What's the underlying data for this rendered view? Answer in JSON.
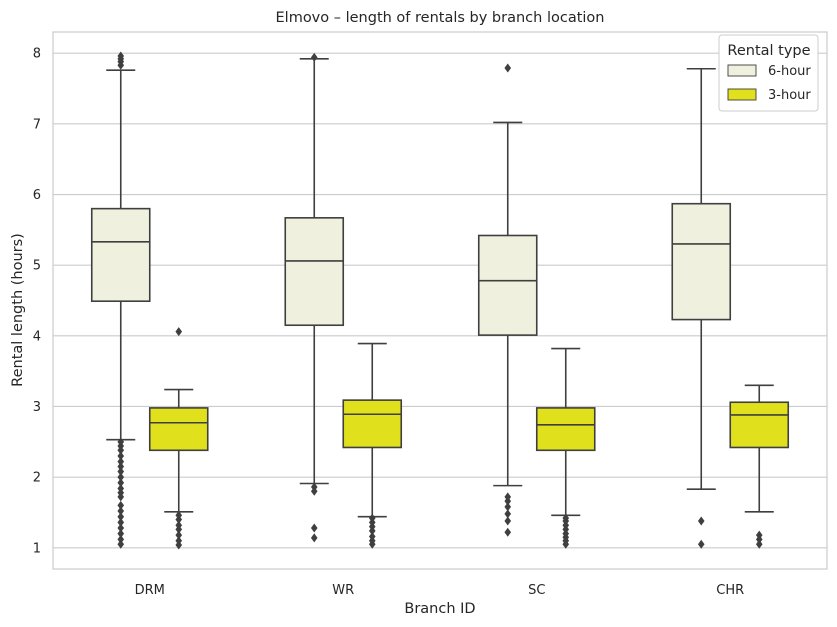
{
  "chart_data": {
    "type": "boxplot",
    "title": "Elmovo – length of rentals by branch location",
    "xlabel": "Branch ID",
    "ylabel": "Rental length (hours)",
    "ylim": [
      0.7,
      8.3
    ],
    "yticks": [
      1,
      2,
      3,
      4,
      5,
      6,
      7,
      8
    ],
    "grid": "horizontal",
    "categories": [
      "DRM",
      "WR",
      "SC",
      "CHR"
    ],
    "legend": {
      "title": "Rental type",
      "position": "top-right"
    },
    "series": [
      {
        "name": "6-hour",
        "color": "#f0f0df",
        "boxes": [
          {
            "whislo": 2.53,
            "q1": 4.49,
            "med": 5.33,
            "q3": 5.8,
            "whishi": 7.76,
            "fliers": [
              1.05,
              1.12,
              1.2,
              1.28,
              1.36,
              1.44,
              1.52,
              1.6,
              1.72,
              1.78,
              1.84,
              1.92,
              2.0,
              2.08,
              2.15,
              2.22,
              2.3,
              2.38,
              2.44,
              2.5,
              7.83,
              7.88,
              7.92,
              7.96
            ]
          },
          {
            "whislo": 1.91,
            "q1": 4.15,
            "med": 5.06,
            "q3": 5.67,
            "whishi": 7.92,
            "fliers": [
              1.14,
              1.28,
              1.8,
              1.86,
              7.94
            ]
          },
          {
            "whislo": 1.88,
            "q1": 4.01,
            "med": 4.78,
            "q3": 5.42,
            "whishi": 7.02,
            "fliers": [
              1.22,
              1.38,
              1.48,
              1.58,
              1.66,
              1.72,
              7.79
            ]
          },
          {
            "whislo": 1.83,
            "q1": 4.23,
            "med": 5.3,
            "q3": 5.87,
            "whishi": 7.78,
            "fliers": [
              1.05,
              1.38
            ]
          }
        ]
      },
      {
        "name": "3-hour",
        "color": "#e0e01c",
        "boxes": [
          {
            "whislo": 1.51,
            "q1": 2.38,
            "med": 2.77,
            "q3": 2.98,
            "whishi": 3.24,
            "fliers": [
              1.04,
              1.1,
              1.18,
              1.26,
              1.32,
              1.4,
              1.46,
              4.06
            ]
          },
          {
            "whislo": 1.44,
            "q1": 2.42,
            "med": 2.89,
            "q3": 3.09,
            "whishi": 3.89,
            "fliers": [
              1.05,
              1.1,
              1.16,
              1.24,
              1.3,
              1.36,
              1.42
            ]
          },
          {
            "whislo": 1.46,
            "q1": 2.38,
            "med": 2.74,
            "q3": 2.98,
            "whishi": 3.82,
            "fliers": [
              1.05,
              1.1,
              1.15,
              1.2,
              1.26,
              1.32,
              1.38,
              1.42
            ]
          },
          {
            "whislo": 1.51,
            "q1": 2.42,
            "med": 2.88,
            "q3": 3.06,
            "whishi": 3.3,
            "fliers": [
              1.05,
              1.12,
              1.18
            ]
          }
        ]
      }
    ]
  }
}
